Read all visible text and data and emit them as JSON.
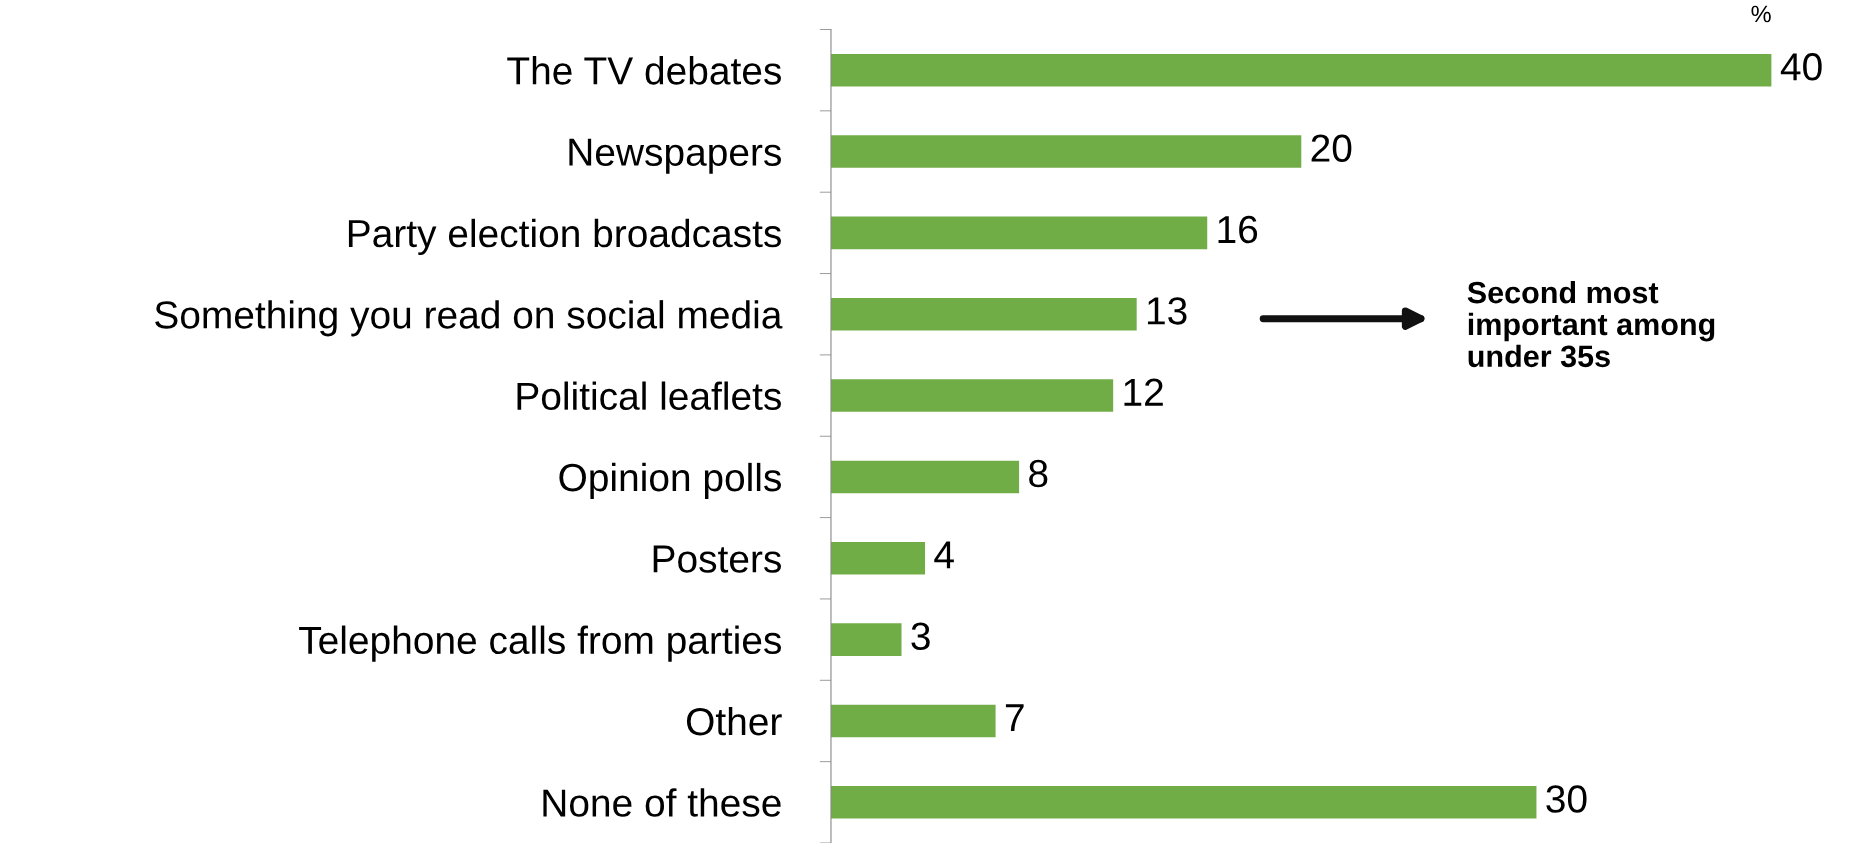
{
  "chart_data": {
    "type": "bar",
    "orientation": "horizontal",
    "categories": [
      "The TV debates",
      "Newspapers",
      "Party election broadcasts",
      "Something you read on social media",
      "Political leaflets",
      "Opinion polls",
      "Posters",
      "Telephone calls from parties",
      "Other",
      "None of these"
    ],
    "values": [
      40,
      20,
      16,
      13,
      12,
      8,
      4,
      3,
      7,
      30
    ],
    "color": "#70ad47",
    "data_labels": true,
    "grid": false,
    "legend": false,
    "annotations": [
      "%",
      "Second most\nimportant among\nunder 35s"
    ]
  }
}
